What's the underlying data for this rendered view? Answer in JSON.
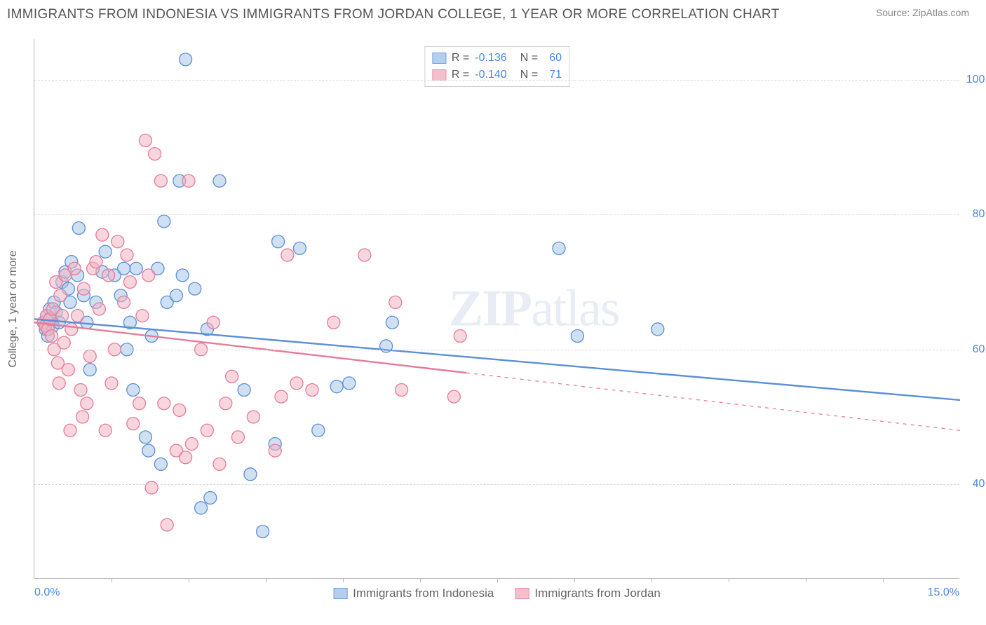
{
  "header": {
    "title": "IMMIGRANTS FROM INDONESIA VS IMMIGRANTS FROM JORDAN COLLEGE, 1 YEAR OR MORE CORRELATION CHART",
    "source": "Source: ZipAtlas.com"
  },
  "chart": {
    "type": "scatter",
    "ylabel": "College, 1 year or more",
    "xlim": [
      0,
      15
    ],
    "ylim": [
      26,
      106
    ],
    "x_left_label": "0.0%",
    "x_right_label": "15.0%",
    "y_ticks": [
      {
        "v": 40,
        "label": "40.0%"
      },
      {
        "v": 60,
        "label": "60.0%"
      },
      {
        "v": 80,
        "label": "80.0%"
      },
      {
        "v": 100,
        "label": "100.0%"
      }
    ],
    "x_minor_ticks": [
      1.25,
      2.5,
      3.75,
      5,
      6.25,
      7.5,
      8.75,
      10,
      11.25,
      12.5,
      13.75
    ],
    "background_color": "#ffffff",
    "grid_color": "#d9d9d9",
    "axis_color": "#b5b5b5",
    "marker_radius": 9,
    "marker_stroke_width": 1.3,
    "line_width": 2.4,
    "series": [
      {
        "name": "Immigrants from Indonesia",
        "fill": "#a7c7ea",
        "stroke": "#5b8fd6",
        "fill_opacity": 0.55,
        "r_value": "-0.136",
        "n_value": "60",
        "trend": {
          "x1": 0,
          "y1": 64.5,
          "x2": 15,
          "y2": 52.5,
          "dash_from_x": 15
        },
        "points": [
          [
            0.15,
            64
          ],
          [
            0.18,
            63
          ],
          [
            0.2,
            65
          ],
          [
            0.22,
            62
          ],
          [
            0.25,
            66
          ],
          [
            0.28,
            64.5
          ],
          [
            0.3,
            63.5
          ],
          [
            0.32,
            67
          ],
          [
            0.35,
            65.5
          ],
          [
            0.4,
            64
          ],
          [
            0.45,
            70
          ],
          [
            0.5,
            71.5
          ],
          [
            0.55,
            69
          ],
          [
            0.58,
            67
          ],
          [
            0.6,
            73
          ],
          [
            0.7,
            71
          ],
          [
            0.72,
            78
          ],
          [
            0.8,
            68
          ],
          [
            0.85,
            64
          ],
          [
            0.9,
            57
          ],
          [
            1.0,
            67
          ],
          [
            1.1,
            71.5
          ],
          [
            1.15,
            74.5
          ],
          [
            1.3,
            71
          ],
          [
            1.4,
            68
          ],
          [
            1.45,
            72
          ],
          [
            1.5,
            60
          ],
          [
            1.55,
            64
          ],
          [
            1.6,
            54
          ],
          [
            1.65,
            72
          ],
          [
            1.8,
            47
          ],
          [
            1.85,
            45
          ],
          [
            1.9,
            62
          ],
          [
            2.0,
            72
          ],
          [
            2.05,
            43
          ],
          [
            2.1,
            79
          ],
          [
            2.15,
            67
          ],
          [
            2.3,
            68
          ],
          [
            2.35,
            85
          ],
          [
            2.4,
            71
          ],
          [
            2.45,
            103
          ],
          [
            2.6,
            69
          ],
          [
            2.7,
            36.5
          ],
          [
            2.8,
            63
          ],
          [
            2.85,
            38
          ],
          [
            3.0,
            85
          ],
          [
            3.4,
            54
          ],
          [
            3.5,
            41.5
          ],
          [
            3.7,
            33
          ],
          [
            3.9,
            46
          ],
          [
            3.95,
            76
          ],
          [
            4.3,
            75
          ],
          [
            4.6,
            48
          ],
          [
            4.9,
            54.5
          ],
          [
            5.1,
            55
          ],
          [
            5.7,
            60.5
          ],
          [
            5.8,
            64
          ],
          [
            8.5,
            75
          ],
          [
            8.8,
            62
          ],
          [
            10.1,
            63
          ]
        ]
      },
      {
        "name": "Immigrants from Jordan",
        "fill": "#f3b4c2",
        "stroke": "#e67b98",
        "fill_opacity": 0.55,
        "r_value": "-0.140",
        "n_value": "71",
        "trend": {
          "x1": 0,
          "y1": 64,
          "x2": 15,
          "y2": 48,
          "dash_from_x": 7
        },
        "points": [
          [
            0.15,
            64
          ],
          [
            0.18,
            63.5
          ],
          [
            0.2,
            65
          ],
          [
            0.22,
            63
          ],
          [
            0.25,
            64.5
          ],
          [
            0.28,
            62
          ],
          [
            0.3,
            66
          ],
          [
            0.32,
            60
          ],
          [
            0.35,
            70
          ],
          [
            0.38,
            58
          ],
          [
            0.4,
            55
          ],
          [
            0.42,
            68
          ],
          [
            0.45,
            65
          ],
          [
            0.48,
            61
          ],
          [
            0.5,
            71
          ],
          [
            0.55,
            57
          ],
          [
            0.58,
            48
          ],
          [
            0.6,
            63
          ],
          [
            0.65,
            72
          ],
          [
            0.7,
            65
          ],
          [
            0.75,
            54
          ],
          [
            0.78,
            50
          ],
          [
            0.8,
            69
          ],
          [
            0.85,
            52
          ],
          [
            0.9,
            59
          ],
          [
            0.95,
            72
          ],
          [
            1.0,
            73
          ],
          [
            1.05,
            66
          ],
          [
            1.1,
            77
          ],
          [
            1.15,
            48
          ],
          [
            1.2,
            71
          ],
          [
            1.25,
            55
          ],
          [
            1.3,
            60
          ],
          [
            1.35,
            76
          ],
          [
            1.45,
            67
          ],
          [
            1.5,
            74
          ],
          [
            1.55,
            70
          ],
          [
            1.6,
            49
          ],
          [
            1.7,
            52
          ],
          [
            1.75,
            65
          ],
          [
            1.8,
            91
          ],
          [
            1.85,
            71
          ],
          [
            1.9,
            39.5
          ],
          [
            1.95,
            89
          ],
          [
            2.05,
            85
          ],
          [
            2.1,
            52
          ],
          [
            2.15,
            34
          ],
          [
            2.3,
            45
          ],
          [
            2.35,
            51
          ],
          [
            2.45,
            44
          ],
          [
            2.5,
            85
          ],
          [
            2.55,
            46
          ],
          [
            2.7,
            60
          ],
          [
            2.8,
            48
          ],
          [
            2.9,
            64
          ],
          [
            3.0,
            43
          ],
          [
            3.1,
            52
          ],
          [
            3.2,
            56
          ],
          [
            3.3,
            47
          ],
          [
            3.55,
            50
          ],
          [
            3.9,
            45
          ],
          [
            4.0,
            53
          ],
          [
            4.1,
            74
          ],
          [
            4.25,
            55
          ],
          [
            4.5,
            54
          ],
          [
            4.85,
            64
          ],
          [
            5.35,
            74
          ],
          [
            5.85,
            67
          ],
          [
            5.95,
            54
          ],
          [
            6.8,
            53
          ],
          [
            6.9,
            62
          ]
        ]
      }
    ],
    "watermark": "ZIPatlas",
    "legend_top": {
      "r_label": "R =",
      "n_label": "N ="
    }
  }
}
